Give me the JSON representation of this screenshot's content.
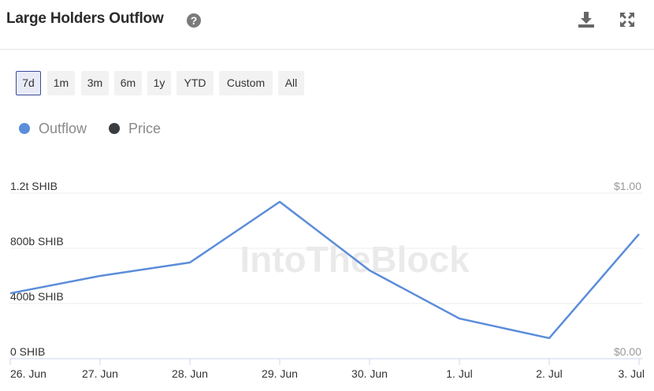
{
  "header": {
    "title": "Large Holders Outflow"
  },
  "ranges": [
    "7d",
    "1m",
    "3m",
    "6m",
    "1y",
    "YTD",
    "Custom",
    "All"
  ],
  "selected_range": 0,
  "watermark": "IntoTheBlock",
  "chart_data": {
    "type": "line",
    "categories": [
      "26. Jun",
      "27. Jun",
      "28. Jun",
      "29. Jun",
      "30. Jun",
      "1. Jul",
      "2. Jul",
      "3. Jul"
    ],
    "series": [
      {
        "name": "Outflow",
        "color": "#5b8dd9",
        "values": [
          474,
          600,
          697,
          1137,
          640,
          291,
          149,
          903
        ]
      },
      {
        "name": "Price",
        "color": "#3a3d40",
        "axis": "y2",
        "values": [
          null,
          null,
          null,
          null,
          null,
          null,
          null,
          null
        ]
      }
    ],
    "ylim": [
      0,
      1200
    ],
    "yticks": [
      {
        "value": 0,
        "label": "0 SHIB"
      },
      {
        "value": 400,
        "label": "400b SHIB"
      },
      {
        "value": 800,
        "label": "800b SHIB"
      },
      {
        "value": 1200,
        "label": "1.2t SHIB"
      }
    ],
    "y2lim": [
      0,
      1
    ],
    "y2ticks": [
      {
        "value": 0,
        "label": "$0.00"
      },
      {
        "value": 1,
        "label": "$1.00"
      }
    ],
    "grid": true
  }
}
